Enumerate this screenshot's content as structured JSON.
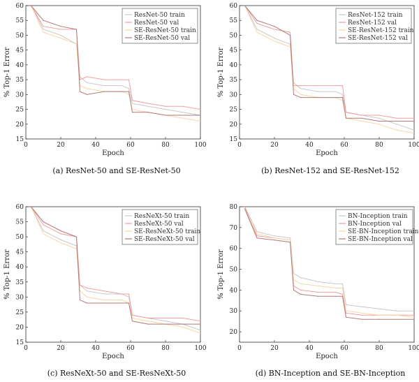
{
  "chart_data": [
    {
      "type": "line",
      "caption": "(a) ResNet-50 and SE-ResNet-50",
      "xlabel": "Epoch",
      "ylabel": "% Top-1 Error",
      "xlim": [
        0,
        100
      ],
      "ylim": [
        15,
        60
      ],
      "xticks": [
        0,
        20,
        40,
        60,
        80,
        100
      ],
      "yticks": [
        15,
        20,
        25,
        30,
        35,
        40,
        45,
        50,
        55,
        60
      ],
      "series": [
        {
          "name": "ResNet-50 train",
          "color": "#c8c8c8",
          "x": [
            3,
            10,
            20,
            29,
            31,
            35,
            45,
            55,
            59,
            61,
            70,
            80,
            90,
            100
          ],
          "y": [
            60,
            52,
            50,
            47,
            36,
            34,
            33,
            33,
            32,
            27,
            26,
            25,
            24,
            23
          ]
        },
        {
          "name": "ResNet-50 val",
          "color": "#f0a0a0",
          "x": [
            3,
            10,
            20,
            29,
            31,
            35,
            45,
            55,
            59,
            61,
            70,
            80,
            90,
            100
          ],
          "y": [
            60,
            53,
            52,
            52,
            35,
            36,
            35,
            35,
            35,
            28,
            27,
            26,
            26,
            25
          ]
        },
        {
          "name": "SE-ResNet-50 train",
          "color": "#f7d6a8",
          "x": [
            3,
            10,
            20,
            29,
            31,
            35,
            45,
            55,
            59,
            61,
            70,
            80,
            90,
            100
          ],
          "y": [
            60,
            51,
            49,
            47,
            33,
            32,
            31,
            31,
            30,
            25,
            24,
            23,
            22,
            21
          ]
        },
        {
          "name": "SE-ResNet-50 val",
          "color": "#b07a7a",
          "x": [
            3,
            10,
            20,
            29,
            31,
            35,
            45,
            55,
            59,
            61,
            70,
            80,
            90,
            100
          ],
          "y": [
            60,
            55,
            53,
            52,
            31,
            30,
            31,
            31,
            31,
            24,
            24,
            23,
            23,
            23
          ]
        }
      ]
    },
    {
      "type": "line",
      "caption": "(b) ResNet-152 and SE-ResNet-152",
      "xlabel": "Epoch",
      "ylabel": "% Top-1 Error",
      "xlim": [
        0,
        100
      ],
      "ylim": [
        15,
        60
      ],
      "xticks": [
        0,
        20,
        40,
        60,
        80,
        100
      ],
      "yticks": [
        15,
        20,
        25,
        30,
        35,
        40,
        45,
        50,
        55,
        60
      ],
      "series": [
        {
          "name": "ResNet-152 train",
          "color": "#c8c8c8",
          "x": [
            3,
            10,
            20,
            29,
            31,
            35,
            45,
            55,
            59,
            61,
            70,
            80,
            90,
            100
          ],
          "y": [
            60,
            52,
            49,
            47,
            34,
            32,
            31,
            31,
            30,
            24,
            23,
            22,
            20,
            18
          ]
        },
        {
          "name": "ResNet-152 val",
          "color": "#f0a0a0",
          "x": [
            3,
            10,
            20,
            29,
            31,
            35,
            45,
            55,
            59,
            61,
            70,
            80,
            90,
            100
          ],
          "y": [
            60,
            54,
            52,
            51,
            33,
            33,
            33,
            33,
            33,
            24,
            23,
            23,
            22,
            22
          ]
        },
        {
          "name": "SE-ResNet-152 train",
          "color": "#f7d6a8",
          "x": [
            3,
            10,
            20,
            29,
            31,
            35,
            45,
            55,
            59,
            61,
            70,
            80,
            90,
            100
          ],
          "y": [
            60,
            51,
            48,
            46,
            32,
            30,
            29,
            29,
            28,
            22,
            21,
            20,
            18,
            17
          ]
        },
        {
          "name": "SE-ResNet-152 val",
          "color": "#b07a7a",
          "x": [
            3,
            10,
            20,
            29,
            31,
            35,
            45,
            55,
            59,
            61,
            70,
            80,
            90,
            100
          ],
          "y": [
            60,
            55,
            53,
            50,
            30,
            29,
            29,
            29,
            29,
            22,
            22,
            21,
            21,
            21
          ]
        }
      ]
    },
    {
      "type": "line",
      "caption": "(c) ResNeXt-50 and SE-ResNeXt-50",
      "xlabel": "Epoch",
      "ylabel": "% Top-1 Error",
      "xlim": [
        0,
        100
      ],
      "ylim": [
        15,
        60
      ],
      "xticks": [
        0,
        20,
        40,
        60,
        80,
        100
      ],
      "yticks": [
        15,
        20,
        25,
        30,
        35,
        40,
        45,
        50,
        55,
        60
      ],
      "series": [
        {
          "name": "ResNeXt-50 train",
          "color": "#c8c8c8",
          "x": [
            3,
            10,
            20,
            29,
            31,
            35,
            45,
            55,
            59,
            61,
            70,
            80,
            90,
            100
          ],
          "y": [
            60,
            52,
            49,
            47,
            34,
            32,
            31,
            31,
            30,
            24,
            23,
            22,
            21,
            19
          ]
        },
        {
          "name": "ResNeXt-50 val",
          "color": "#f0a0a0",
          "x": [
            3,
            10,
            20,
            29,
            31,
            35,
            45,
            55,
            59,
            61,
            70,
            80,
            90,
            100
          ],
          "y": [
            60,
            54,
            51,
            50,
            34,
            33,
            32,
            31,
            31,
            24,
            23,
            23,
            23,
            22
          ]
        },
        {
          "name": "SE-ResNeXt-50 train",
          "color": "#f7d6a8",
          "x": [
            3,
            10,
            20,
            29,
            31,
            35,
            45,
            55,
            59,
            61,
            70,
            80,
            90,
            100
          ],
          "y": [
            60,
            51,
            48,
            46,
            32,
            30,
            29,
            29,
            28,
            23,
            22,
            21,
            20,
            18
          ]
        },
        {
          "name": "SE-ResNeXt-50 val",
          "color": "#b07a7a",
          "x": [
            3,
            10,
            20,
            29,
            31,
            35,
            45,
            55,
            59,
            61,
            70,
            80,
            90,
            100
          ],
          "y": [
            60,
            55,
            52,
            50,
            29,
            28,
            28,
            28,
            28,
            22,
            21,
            21,
            21,
            21
          ]
        }
      ]
    },
    {
      "type": "line",
      "caption": "(d) BN-Inception and SE-BN-Inception",
      "xlabel": "Epoch",
      "ylabel": "% Top-1 Error",
      "xlim": [
        0,
        100
      ],
      "ylim": [
        15,
        80
      ],
      "xticks": [
        0,
        20,
        40,
        60,
        80,
        100
      ],
      "yticks": [
        20,
        30,
        40,
        50,
        60,
        70,
        80
      ],
      "series": [
        {
          "name": "BN-Inception train",
          "color": "#c8c8c8",
          "x": [
            3,
            10,
            20,
            29,
            31,
            35,
            45,
            55,
            59,
            61,
            70,
            80,
            90,
            100
          ],
          "y": [
            80,
            68,
            66,
            65,
            48,
            46,
            44,
            43,
            43,
            33,
            32,
            31,
            30,
            30
          ]
        },
        {
          "name": "BN-Inception val",
          "color": "#f0a0a0",
          "x": [
            3,
            10,
            20,
            29,
            31,
            35,
            45,
            55,
            59,
            61,
            70,
            80,
            90,
            100
          ],
          "y": [
            80,
            66,
            65,
            64,
            42,
            40,
            39,
            39,
            38,
            29,
            28,
            28,
            28,
            28
          ]
        },
        {
          "name": "SE-BN-Inception train",
          "color": "#f7d6a8",
          "x": [
            3,
            10,
            20,
            29,
            31,
            35,
            45,
            55,
            59,
            61,
            70,
            80,
            90,
            100
          ],
          "y": [
            79,
            67,
            65,
            64,
            45,
            43,
            42,
            41,
            41,
            30,
            29,
            28,
            28,
            27
          ]
        },
        {
          "name": "SE-BN-Inception val",
          "color": "#b07a7a",
          "x": [
            3,
            10,
            20,
            29,
            31,
            35,
            45,
            55,
            59,
            61,
            70,
            80,
            90,
            100
          ],
          "y": [
            79,
            65,
            64,
            63,
            40,
            38,
            37,
            37,
            37,
            27,
            26,
            26,
            26,
            26
          ]
        }
      ]
    }
  ]
}
